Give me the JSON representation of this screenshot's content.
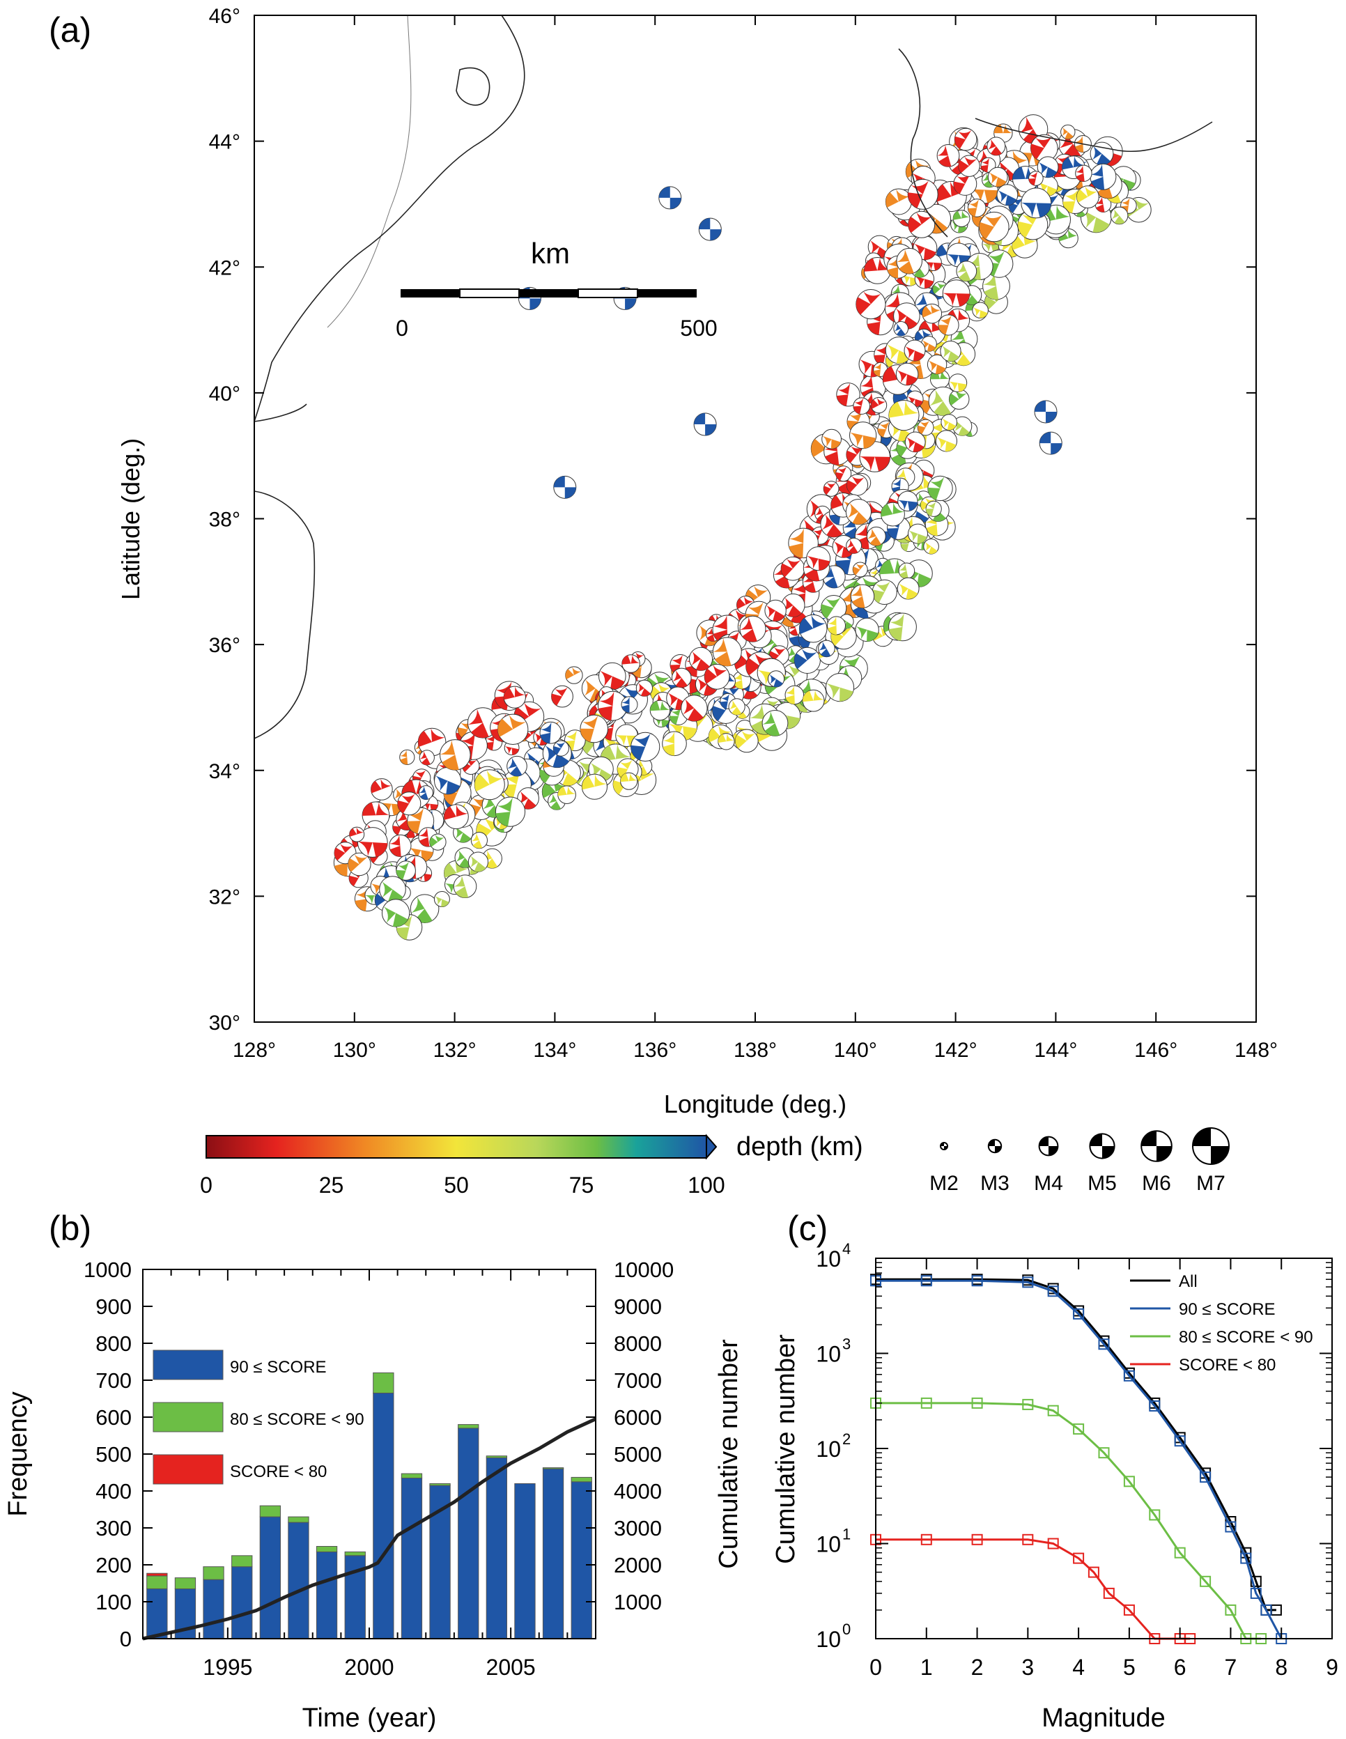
{
  "panel_a": {
    "label": "(a)",
    "xlabel": "Longitude (deg.)",
    "ylabel": "Latitude (deg.)",
    "x_ticks": [
      "128°",
      "130°",
      "132°",
      "134°",
      "136°",
      "138°",
      "140°",
      "142°",
      "144°",
      "146°",
      "148°"
    ],
    "y_ticks": [
      "30°",
      "32°",
      "34°",
      "36°",
      "38°",
      "40°",
      "42°",
      "44°",
      "46°"
    ],
    "scalebar": {
      "unit": "km",
      "start": "0",
      "end": "500"
    },
    "colorbar": {
      "label": "depth (km)",
      "ticks": [
        "0",
        "25",
        "50",
        "75",
        "100"
      ],
      "colors": [
        "#8b0f14",
        "#e5231f",
        "#f08a24",
        "#f2e53a",
        "#b9d75a",
        "#6cbe45",
        "#1aa29a",
        "#1f56a6"
      ]
    },
    "magnitude_legend": [
      "M2",
      "M3",
      "M4",
      "M5",
      "M6",
      "M7"
    ]
  },
  "chart_data": [
    {
      "type": "bar",
      "panel": "(b)",
      "xlabel": "Time (year)",
      "ylabel": "Frequency",
      "ylabel_right": "Cumulative number",
      "xlim": [
        1992,
        2008
      ],
      "ylim": [
        0,
        1000
      ],
      "ylim_right": [
        0,
        10000
      ],
      "x_ticks": [
        "1995",
        "2000",
        "2005"
      ],
      "y_ticks": [
        "0",
        "100",
        "200",
        "300",
        "400",
        "500",
        "600",
        "700",
        "800",
        "900",
        "1000"
      ],
      "y_ticks_right": [
        "1000",
        "2000",
        "3000",
        "4000",
        "5000",
        "6000",
        "7000",
        "8000",
        "9000",
        "10000"
      ],
      "categories": [
        1992,
        1993,
        1994,
        1995,
        1996,
        1997,
        1998,
        1999,
        2000,
        2001,
        2002,
        2003,
        2004,
        2005,
        2006,
        2007
      ],
      "series": [
        {
          "name": "90 ≤ SCORE",
          "color": "#1f56a6",
          "values": [
            135,
            135,
            160,
            195,
            330,
            315,
            235,
            225,
            665,
            435,
            415,
            570,
            490,
            420,
            460,
            425
          ]
        },
        {
          "name": "80 ≤ SCORE < 90",
          "color": "#6cbe45",
          "values": [
            35,
            30,
            35,
            30,
            30,
            15,
            15,
            10,
            55,
            12,
            5,
            10,
            5,
            0,
            3,
            12
          ]
        },
        {
          "name": "SCORE < 80",
          "color": "#e5231f",
          "values": [
            7,
            0,
            0,
            0,
            0,
            0,
            0,
            0,
            0,
            0,
            0,
            0,
            0,
            0,
            0,
            0
          ]
        }
      ],
      "cumulative": {
        "x": [
          1992,
          1993,
          1994,
          1995,
          1996,
          1997,
          1998,
          1999,
          2000,
          2000.3,
          2001,
          2002,
          2003,
          2004,
          2005,
          2006,
          2007,
          2008
        ],
        "y": [
          0,
          170,
          340,
          530,
          760,
          1120,
          1450,
          1700,
          1940,
          2050,
          2800,
          3250,
          3700,
          4250,
          4750,
          5150,
          5600,
          5950
        ]
      }
    },
    {
      "type": "line",
      "panel": "(c)",
      "xlabel": "Magnitude",
      "ylabel": "Cumulative number",
      "xlim": [
        0,
        9
      ],
      "ylim": [
        1,
        10000
      ],
      "yscale": "log",
      "x_ticks": [
        "0",
        "1",
        "2",
        "3",
        "4",
        "5",
        "6",
        "7",
        "8",
        "9"
      ],
      "y_tick_bases": [
        "10",
        "10",
        "10",
        "10",
        "10"
      ],
      "y_tick_exps": [
        "0",
        "1",
        "2",
        "3",
        "4"
      ],
      "series": [
        {
          "name": "All",
          "color": "#000000",
          "x": [
            0,
            1,
            2,
            3,
            3.5,
            4,
            4.5,
            5,
            5.5,
            6,
            6.5,
            7,
            7.3,
            7.5,
            7.7,
            7.9
          ],
          "y": [
            6000,
            6000,
            6000,
            5900,
            4800,
            2800,
            1350,
            620,
            300,
            130,
            55,
            17,
            8,
            4,
            2,
            2
          ]
        },
        {
          "name": "90 ≤ SCORE",
          "color": "#1f56a6",
          "x": [
            0,
            1,
            2,
            3,
            3.5,
            4,
            4.5,
            5,
            5.5,
            6,
            6.5,
            7,
            7.3,
            7.5,
            7.7,
            8.0
          ],
          "y": [
            5800,
            5800,
            5800,
            5600,
            4500,
            2600,
            1250,
            580,
            280,
            120,
            50,
            15,
            7,
            3,
            2,
            1
          ]
        },
        {
          "name": "80 ≤ SCORE < 90",
          "color": "#6cbe45",
          "x": [
            0,
            1,
            2,
            3,
            3.5,
            4,
            4.5,
            5,
            5.5,
            6,
            6.5,
            7,
            7.3,
            7.6
          ],
          "y": [
            300,
            300,
            300,
            290,
            250,
            160,
            90,
            45,
            20,
            8,
            4,
            2,
            1,
            1
          ]
        },
        {
          "name": "SCORE < 80",
          "color": "#e5231f",
          "x": [
            0,
            1,
            2,
            3,
            3.5,
            4,
            4.3,
            4.6,
            5,
            5.5,
            6,
            6.2
          ],
          "y": [
            11,
            11,
            11,
            11,
            10,
            7,
            5,
            3,
            2,
            1,
            1,
            1
          ]
        }
      ]
    }
  ]
}
